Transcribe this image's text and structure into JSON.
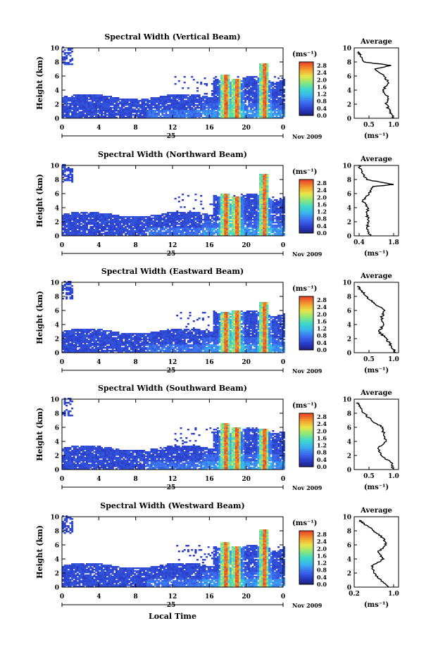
{
  "figure": {
    "bottom_xlabel": "Local Time"
  },
  "chart_data": [
    {
      "type": "heatmap",
      "title": "Spectral Width (Vertical Beam)",
      "ylabel": "Height (km)",
      "xlim": [
        0,
        24
      ],
      "ylim": [
        0,
        10
      ],
      "xticks": [
        "0",
        "4",
        "8",
        "12",
        "16",
        "20",
        "0"
      ],
      "yticks": [
        "0",
        "2",
        "4",
        "6",
        "8",
        "10"
      ],
      "date_label": "25",
      "month_label": "Nov 2009",
      "colorbar": {
        "unit": "(ms⁻¹)",
        "ticks": [
          "0.0",
          "0.4",
          "0.8",
          "1.2",
          "1.6",
          "2.0",
          "2.4",
          "2.8"
        ],
        "min": 0,
        "max": 3.0
      },
      "convective_cells": [
        {
          "time": 17.6,
          "top": 6.2
        },
        {
          "time": 18.8,
          "top": 5.5
        },
        {
          "time": 21.8,
          "top": 7.8
        }
      ],
      "profile": {
        "title": "Average",
        "xlabel": "(ms⁻¹)",
        "xticks": [
          "0.5",
          "1.0"
        ],
        "xlim": [
          0.2,
          1.1
        ],
        "heights": [
          0,
          1,
          2,
          3,
          4,
          5,
          6,
          7,
          7.5,
          8,
          9,
          9.5
        ],
        "values": [
          1.0,
          0.92,
          0.85,
          0.88,
          0.78,
          0.9,
          0.8,
          0.62,
          0.95,
          0.4,
          0.32,
          0.28
        ]
      }
    },
    {
      "type": "heatmap",
      "title": "Spectral Width (Northward Beam)",
      "ylabel": "Height (km)",
      "xlim": [
        0,
        24
      ],
      "ylim": [
        0,
        10
      ],
      "xticks": [
        "0",
        "4",
        "8",
        "12",
        "16",
        "20",
        "0"
      ],
      "yticks": [
        "0",
        "2",
        "4",
        "6",
        "8",
        "10"
      ],
      "date_label": "25",
      "month_label": "Nov 2009",
      "colorbar": {
        "unit": "(ms⁻¹)",
        "ticks": [
          "0.0",
          "0.4",
          "0.8",
          "1.2",
          "1.6",
          "2.0",
          "2.4",
          "2.8"
        ],
        "min": 0,
        "max": 3.0
      },
      "convective_cells": [
        {
          "time": 17.6,
          "top": 6.0
        },
        {
          "time": 18.8,
          "top": 5.6
        },
        {
          "time": 21.8,
          "top": 8.8
        }
      ],
      "profile": {
        "title": "Average",
        "xlabel": "(ms⁻¹)",
        "xticks": [
          "0.4",
          "1.8"
        ],
        "xlim": [
          0.2,
          2.0
        ],
        "heights": [
          0,
          1,
          2,
          3,
          4,
          5,
          6,
          7,
          7.3,
          8,
          9,
          10
        ],
        "values": [
          0.85,
          0.7,
          0.8,
          0.7,
          0.75,
          0.55,
          0.8,
          0.95,
          1.8,
          0.7,
          0.5,
          0.4
        ]
      }
    },
    {
      "type": "heatmap",
      "title": "Spectral Width (Eastward Beam)",
      "ylabel": "Height (km)",
      "xlim": [
        0,
        24
      ],
      "ylim": [
        0,
        10
      ],
      "xticks": [
        "0",
        "4",
        "8",
        "12",
        "16",
        "20",
        "0"
      ],
      "yticks": [
        "0",
        "2",
        "4",
        "6",
        "8",
        "10"
      ],
      "date_label": "25",
      "month_label": "Nov 2009",
      "colorbar": {
        "unit": "(ms⁻¹)",
        "ticks": [
          "0.0",
          "0.4",
          "0.8",
          "1.2",
          "1.6",
          "2.0",
          "2.4",
          "2.8"
        ],
        "min": 0,
        "max": 3.0
      },
      "convective_cells": [
        {
          "time": 17.6,
          "top": 5.8
        },
        {
          "time": 18.8,
          "top": 5.9
        },
        {
          "time": 21.8,
          "top": 7.2
        }
      ],
      "profile": {
        "title": "Average",
        "xlabel": "(ms⁻¹)",
        "xticks": [
          "0.5",
          "1.0"
        ],
        "xlim": [
          0.2,
          1.1
        ],
        "heights": [
          0,
          1,
          2,
          3,
          4,
          5,
          6,
          7,
          8,
          9,
          9.5
        ],
        "values": [
          1.05,
          0.95,
          0.85,
          0.7,
          0.8,
          0.75,
          0.82,
          0.6,
          0.45,
          0.32,
          0.28
        ]
      }
    },
    {
      "type": "heatmap",
      "title": "Spectral Width (Southward Beam)",
      "ylabel": "Height (km)",
      "xlim": [
        0,
        24
      ],
      "ylim": [
        0,
        10
      ],
      "xticks": [
        "0",
        "4",
        "8",
        "12",
        "16",
        "20",
        "0"
      ],
      "yticks": [
        "0",
        "2",
        "4",
        "6",
        "8",
        "10"
      ],
      "date_label": "25",
      "month_label": "Nov 2009",
      "colorbar": {
        "unit": "(ms⁻¹)",
        "ticks": [
          "0.0",
          "0.4",
          "0.8",
          "1.2",
          "1.6",
          "2.0",
          "2.4",
          "2.8"
        ],
        "min": 0,
        "max": 3.0
      },
      "convective_cells": [
        {
          "time": 17.6,
          "top": 6.6
        },
        {
          "time": 18.8,
          "top": 6.0
        },
        {
          "time": 21.8,
          "top": 5.8
        }
      ],
      "profile": {
        "title": "Average",
        "xlabel": "(ms⁻¹)",
        "xticks": [
          "0.5",
          "1.0"
        ],
        "xlim": [
          0.2,
          1.1
        ],
        "heights": [
          0,
          1,
          2,
          3,
          4,
          5,
          6,
          7,
          8,
          9,
          9.5
        ],
        "values": [
          1.0,
          0.95,
          0.75,
          0.68,
          0.85,
          0.8,
          0.78,
          0.55,
          0.4,
          0.3,
          0.28
        ]
      }
    },
    {
      "type": "heatmap",
      "title": "Spectral Width (Westward Beam)",
      "ylabel": "Height (km)",
      "xlim": [
        0,
        24
      ],
      "ylim": [
        0,
        10
      ],
      "xticks": [
        "0",
        "4",
        "8",
        "12",
        "16",
        "20",
        "0"
      ],
      "yticks": [
        "0",
        "2",
        "4",
        "6",
        "8",
        "10"
      ],
      "date_label": "25",
      "month_label": "Nov 2009",
      "colorbar": {
        "unit": "(ms⁻¹)",
        "ticks": [
          "0.0",
          "0.4",
          "0.8",
          "1.2",
          "1.6",
          "2.0",
          "2.4",
          "2.8"
        ],
        "min": 0,
        "max": 3.0
      },
      "convective_cells": [
        {
          "time": 17.6,
          "top": 6.4
        },
        {
          "time": 18.8,
          "top": 5.8
        },
        {
          "time": 21.8,
          "top": 8.2
        }
      ],
      "profile": {
        "title": "Average",
        "xlabel": "(ms⁻¹)",
        "xticks": [
          "0.2",
          "1.0"
        ],
        "xlim": [
          0.2,
          1.1
        ],
        "heights": [
          0,
          1,
          2,
          3,
          4,
          5,
          6,
          7,
          8,
          9,
          9.5
        ],
        "values": [
          0.9,
          0.75,
          0.6,
          0.55,
          0.8,
          0.68,
          0.85,
          0.78,
          0.6,
          0.4,
          0.3
        ]
      }
    }
  ]
}
